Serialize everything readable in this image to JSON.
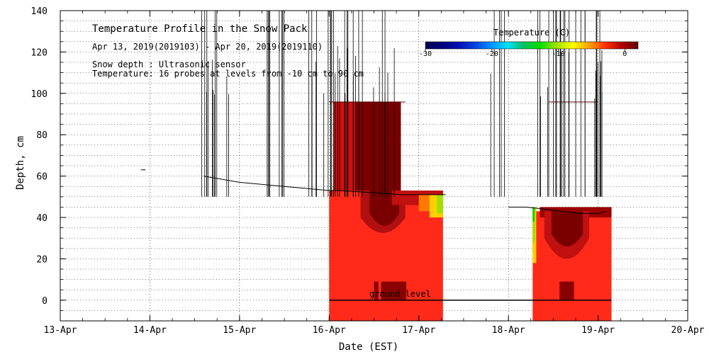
{
  "chart_data": {
    "type": "heatmap",
    "title": "Temperature Profile in the Snow Pack",
    "subtitle": "Apr 13, 2019(2019103) - Apr 20, 2019(2019110)",
    "notes": [
      "Snow depth : Ultrasonic sensor",
      "Temperature: 16 probes at levels from -10 cm to 90 cm"
    ],
    "xlabel": "Date (EST)",
    "ylabel": "Depth, cm",
    "x_ticks": [
      "13-Apr",
      "14-Apr",
      "15-Apr",
      "16-Apr",
      "17-Apr",
      "18-Apr",
      "19-Apr",
      "20-Apr"
    ],
    "x_range_days": [
      13,
      20
    ],
    "ylim": [
      -10,
      140
    ],
    "y_ticks": [
      0,
      20,
      40,
      60,
      80,
      100,
      120,
      140
    ],
    "ground_level_label": "ground level",
    "ground_level_y": 0,
    "grid": "dotted",
    "colorbar": {
      "label": "Temperature (C)",
      "range": [
        -30,
        2
      ],
      "tick_labels": [
        "-30",
        "-20",
        "-10",
        "0"
      ],
      "tick_values": [
        -30,
        -20,
        -10,
        0
      ],
      "placement": "top-right",
      "colors": [
        "#000050",
        "#00007a",
        "#0010b0",
        "#0040e0",
        "#0090ff",
        "#00e0ff",
        "#00c060",
        "#00e000",
        "#a0e000",
        "#ffff00",
        "#ffa000",
        "#ff3000",
        "#b00000",
        "#600000"
      ]
    },
    "temperature_blocks": [
      {
        "x_start": 16.0,
        "x_end": 17.27,
        "y_bottom": -10,
        "y_top": 53,
        "temp_c": 0.0
      },
      {
        "x_start": 18.27,
        "x_end": 19.15,
        "y_bottom": -10,
        "y_top": 43,
        "temp_c": 0.0
      }
    ],
    "snow_depth": {
      "name": "Snow depth",
      "x": [
        13.0,
        13.9,
        13.9,
        13.95,
        14.0,
        14.5,
        14.6,
        15.0,
        15.5,
        16.0,
        16.1,
        16.5,
        16.8,
        17.0,
        17.3,
        17.6,
        18.0,
        18.2,
        18.4,
        18.6,
        18.8,
        19.0,
        19.1
      ],
      "y": [
        null,
        null,
        63,
        63,
        null,
        null,
        60,
        57,
        55,
        53,
        53,
        52,
        51,
        51,
        51,
        null,
        45,
        45,
        44,
        43,
        42,
        42,
        43
      ]
    }
  }
}
